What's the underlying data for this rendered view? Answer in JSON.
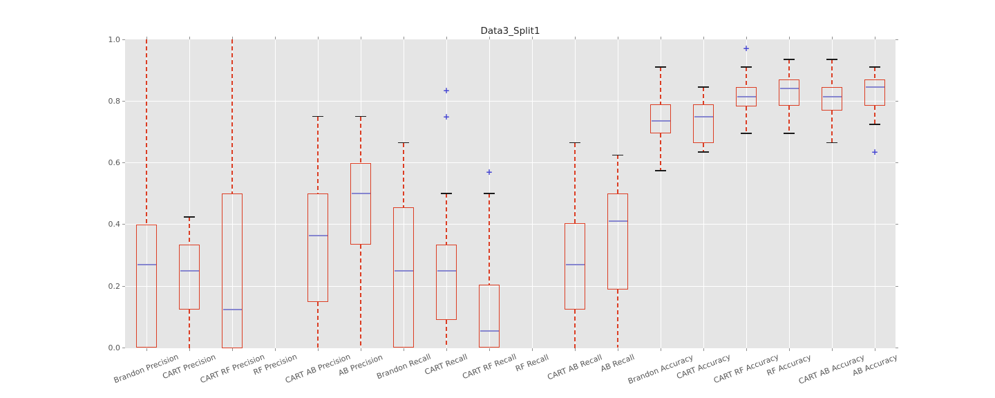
{
  "figure": {
    "background": "#ffffff",
    "plot_background": "#e5e5e5",
    "grid_color": "#ffffff",
    "tick_color": "#8e8e8e",
    "axis_label_color": "#555555",
    "title_color": "#262626"
  },
  "chart_data": {
    "type": "boxplot",
    "title": "Data3_Split1",
    "xlabel": "",
    "ylabel": "",
    "ylim": [
      0.0,
      1.0
    ],
    "yticks": [
      "0.0",
      "0.2",
      "0.4",
      "0.6",
      "0.8",
      "1.0"
    ],
    "grid": true,
    "legend": "none",
    "style": {
      "box_color": "#dc3d23",
      "whisker_color": "#dc3d23",
      "whisker_linestyle": "dashed",
      "median_color": "#8585cf",
      "cap_color": "#1a1a1a",
      "flier_color": "#4343d1",
      "flier_marker": "+"
    },
    "categories": [
      "Brandon Precision",
      "CART Precision",
      "CART RF Precision",
      "RF Precision",
      "CART AB Precision",
      "AB Precision",
      "Brandon Recall",
      "CART Recall",
      "CART RF Recall",
      "RF Recall",
      "CART AB Recall",
      "AB Recall",
      "Brandon Accuracy",
      "CART Accuracy",
      "CART RF Accuracy",
      "RF Accuracy",
      "CART AB Accuracy",
      "AB Accuracy"
    ],
    "boxes": [
      {
        "label": "Brandon Precision",
        "whisker_low": 0.0,
        "q1": 0.0,
        "median": 0.27,
        "q3": 0.4,
        "whisker_high": 1.0,
        "caps": [
          false,
          false
        ],
        "fliers": []
      },
      {
        "label": "CART Precision",
        "whisker_low": 0.0,
        "q1": 0.125,
        "median": 0.25,
        "q3": 0.335,
        "whisker_high": 0.425,
        "caps": [
          false,
          true
        ],
        "fliers": []
      },
      {
        "label": "CART RF Precision",
        "whisker_low": 0.0,
        "q1": 0.0,
        "median": 0.125,
        "q3": 0.5,
        "whisker_high": 1.0,
        "caps": [
          false,
          false
        ],
        "fliers": []
      },
      {
        "label": "RF Precision",
        "no_data": true
      },
      {
        "label": "CART AB Precision",
        "whisker_low": 0.0,
        "q1": 0.15,
        "median": 0.365,
        "q3": 0.5,
        "whisker_high": 0.75,
        "caps": [
          false,
          true
        ],
        "fliers": []
      },
      {
        "label": "AB Precision",
        "whisker_low": 0.0,
        "q1": 0.335,
        "median": 0.5,
        "q3": 0.6,
        "whisker_high": 0.75,
        "caps": [
          false,
          true
        ],
        "fliers": []
      },
      {
        "label": "Brandon Recall",
        "whisker_low": 0.0,
        "q1": 0.0,
        "median": 0.25,
        "q3": 0.455,
        "whisker_high": 0.665,
        "caps": [
          false,
          true
        ],
        "fliers": []
      },
      {
        "label": "CART Recall",
        "whisker_low": 0.0,
        "q1": 0.09,
        "median": 0.25,
        "q3": 0.335,
        "whisker_high": 0.5,
        "caps": [
          false,
          true
        ],
        "fliers": [
          0.75,
          0.835
        ]
      },
      {
        "label": "CART RF Recall",
        "whisker_low": 0.0,
        "q1": 0.0,
        "median": 0.055,
        "q3": 0.205,
        "whisker_high": 0.5,
        "caps": [
          false,
          true
        ],
        "fliers": [
          0.57
        ]
      },
      {
        "label": "RF Recall",
        "no_data": true
      },
      {
        "label": "CART AB Recall",
        "whisker_low": 0.0,
        "q1": 0.125,
        "median": 0.27,
        "q3": 0.405,
        "whisker_high": 0.665,
        "caps": [
          false,
          true
        ],
        "fliers": []
      },
      {
        "label": "AB Recall",
        "whisker_low": 0.0,
        "q1": 0.19,
        "median": 0.41,
        "q3": 0.5,
        "whisker_high": 0.625,
        "caps": [
          false,
          true
        ],
        "fliers": []
      },
      {
        "label": "Brandon Accuracy",
        "whisker_low": 0.575,
        "q1": 0.695,
        "median": 0.735,
        "q3": 0.79,
        "whisker_high": 0.91,
        "caps": [
          true,
          true
        ],
        "fliers": []
      },
      {
        "label": "CART Accuracy",
        "whisker_low": 0.635,
        "q1": 0.665,
        "median": 0.75,
        "q3": 0.79,
        "whisker_high": 0.845,
        "caps": [
          true,
          true
        ],
        "fliers": []
      },
      {
        "label": "CART RF Accuracy",
        "whisker_low": 0.695,
        "q1": 0.783,
        "median": 0.815,
        "q3": 0.845,
        "whisker_high": 0.91,
        "caps": [
          true,
          true
        ],
        "fliers": [
          0.97
        ]
      },
      {
        "label": "RF Accuracy",
        "whisker_low": 0.695,
        "q1": 0.785,
        "median": 0.84,
        "q3": 0.87,
        "whisker_high": 0.935,
        "caps": [
          true,
          true
        ],
        "fliers": []
      },
      {
        "label": "CART AB Accuracy",
        "whisker_low": 0.665,
        "q1": 0.77,
        "median": 0.815,
        "q3": 0.845,
        "whisker_high": 0.935,
        "caps": [
          true,
          true
        ],
        "fliers": []
      },
      {
        "label": "AB Accuracy",
        "whisker_low": 0.725,
        "q1": 0.785,
        "median": 0.845,
        "q3": 0.87,
        "whisker_high": 0.91,
        "caps": [
          true,
          true
        ],
        "fliers": [
          0.635
        ]
      }
    ]
  }
}
